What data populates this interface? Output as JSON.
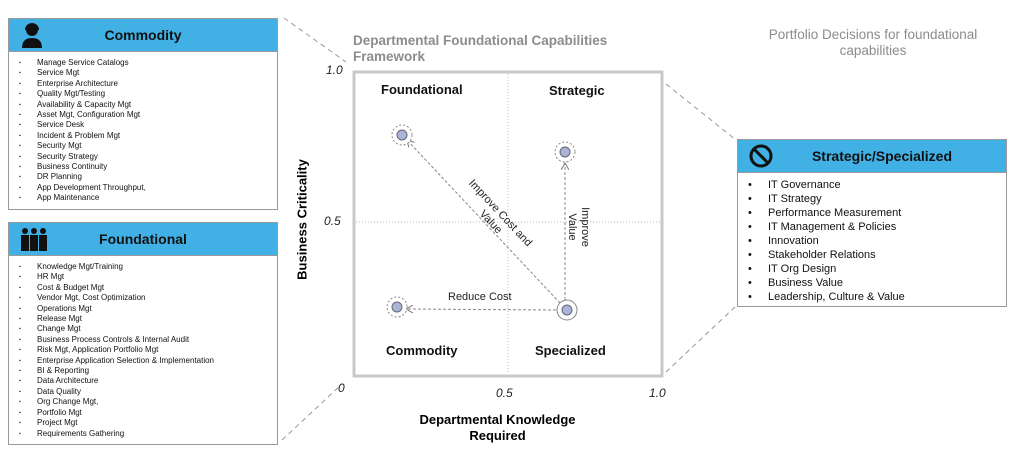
{
  "commodity": {
    "title": "Commodity",
    "icon": "support-agent-icon",
    "items": [
      "Manage Service Catalogs",
      "Service Mgt",
      "Enterprise Architecture",
      "Quality Mgt/Testing",
      "Availability & Capacity Mgt",
      "Asset Mgt, Configuration Mgt",
      "Service Desk",
      "Incident & Problem Mgt",
      "Security Mgt",
      "Security Strategy",
      "Business Continuity",
      "DR Planning",
      "App Development Throughput,",
      "App Maintenance"
    ]
  },
  "foundational": {
    "title": "Foundational",
    "icon": "people-group-icon",
    "items": [
      "Knowledge Mgt/Training",
      "HR Mgt",
      "Cost & Budget Mgt",
      "Vendor Mgt, Cost Optimization",
      "Operations Mgt",
      "Release Mgt",
      "Change Mgt",
      "Business Process Controls & Internal Audit",
      "Risk Mgt, Application Portfolio Mgt",
      "Enterprise Application Selection & Implementation",
      "BI & Reporting",
      "Data Architecture",
      "Data Quality",
      "Org Change Mgt,",
      "Portfolio Mgt",
      "Project Mgt",
      "Requirements Gathering"
    ]
  },
  "framework": {
    "title": "Departmental Foundational Capabilities Framework",
    "xlabel": "Departmental Knowledge Required",
    "ylabel": "Business Criticality",
    "yticks": [
      "1.0",
      "0.5",
      "0"
    ],
    "xticks": [
      "0.5",
      "1.0"
    ],
    "quadrants": {
      "tl": "Foundational",
      "tr": "Strategic",
      "bl": "Commodity",
      "br": "Specialized"
    },
    "arrows": {
      "diag": "Improve Cost and Value",
      "up": "Improve Value",
      "left": "Reduce Cost"
    }
  },
  "portfolio": {
    "title": "Portfolio Decisions for foundational capabilities"
  },
  "strategic": {
    "title": "Strategic/Specialized",
    "icon": "no-entry-icon",
    "items": [
      "IT Governance",
      "IT Strategy",
      "Performance Measurement",
      "IT Management & Policies",
      "Innovation",
      "Stakeholder Relations",
      "IT Org Design",
      "Business Value",
      "Leadership, Culture & Value"
    ]
  },
  "colors": {
    "header": "#41b0e4",
    "accent_gray": "#8c8c8c",
    "node": "#a9b4d6"
  }
}
